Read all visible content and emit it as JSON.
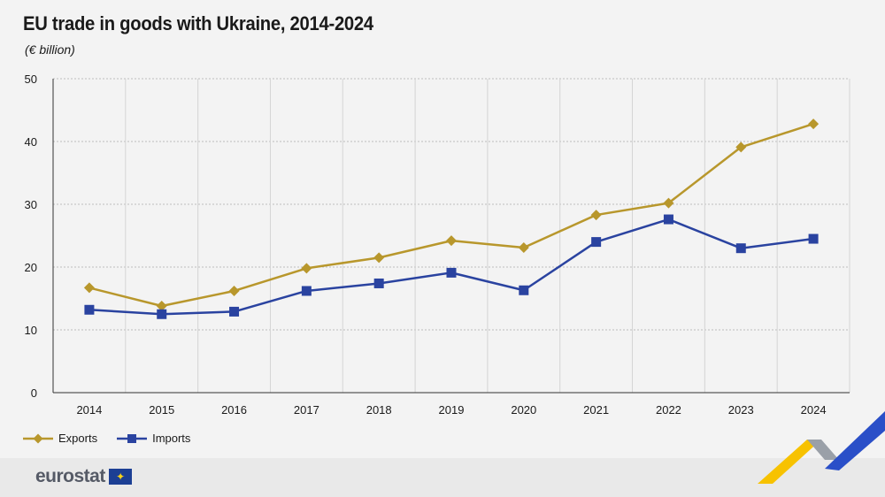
{
  "title": "EU trade in goods with Ukraine, 2014-2024",
  "subtitle": "(€ billion)",
  "footer": {
    "logo_text": "eurostat"
  },
  "colors": {
    "exports": "#b8972c",
    "imports": "#2a43a0",
    "grid": "#bdbdbd",
    "background": "#f3f3f3"
  },
  "chart_data": {
    "type": "line",
    "title": "EU trade in goods with Ukraine, 2014-2024",
    "ylabel": "(€ billion)",
    "xlabel": "",
    "categories": [
      "2014",
      "2015",
      "2016",
      "2017",
      "2018",
      "2019",
      "2020",
      "2021",
      "2022",
      "2023",
      "2024"
    ],
    "ylim": [
      0,
      50
    ],
    "yticks": [
      0,
      10,
      20,
      30,
      40,
      50
    ],
    "grid": true,
    "legend_position": "bottom-left",
    "series": [
      {
        "name": "Exports",
        "marker": "diamond",
        "color": "#b8972c",
        "values": [
          16.7,
          13.8,
          16.2,
          19.8,
          21.5,
          24.2,
          23.1,
          28.3,
          30.2,
          39.1,
          42.8
        ]
      },
      {
        "name": "Imports",
        "marker": "square",
        "color": "#2a43a0",
        "values": [
          13.2,
          12.5,
          12.9,
          16.2,
          17.4,
          19.1,
          16.3,
          24.0,
          27.6,
          23.0,
          24.5
        ]
      }
    ]
  }
}
